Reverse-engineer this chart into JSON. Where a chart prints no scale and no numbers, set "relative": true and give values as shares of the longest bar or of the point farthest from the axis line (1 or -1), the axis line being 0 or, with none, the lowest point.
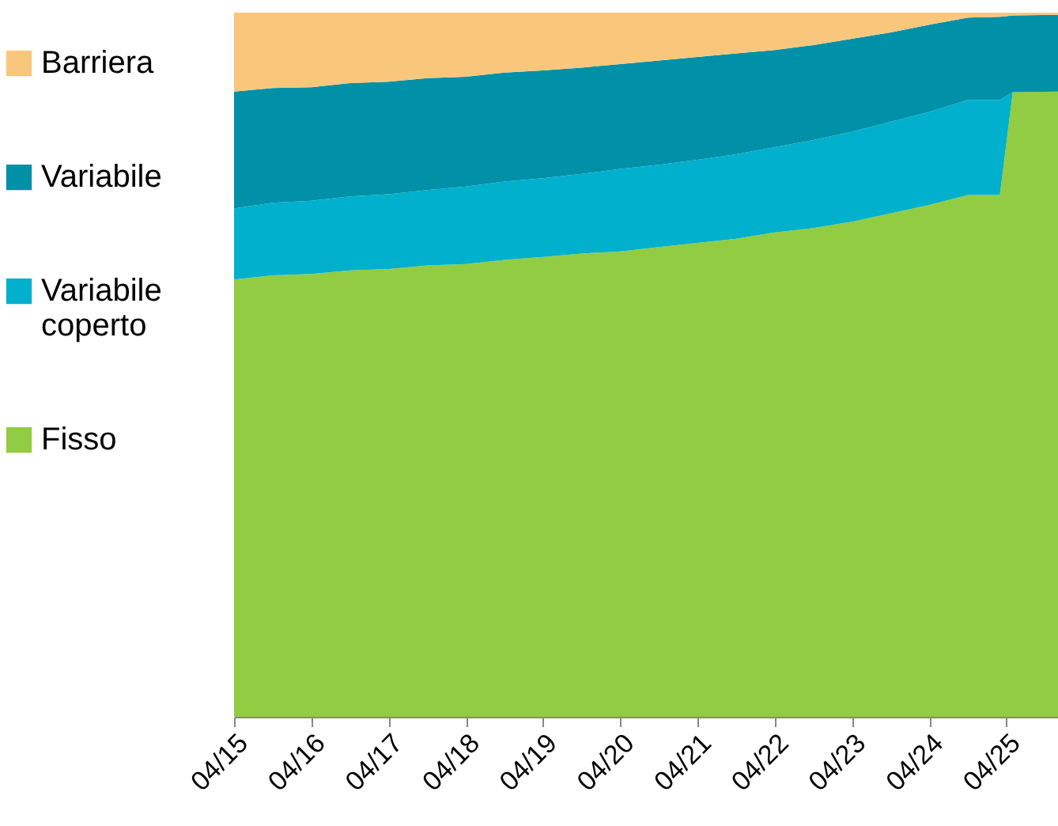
{
  "chart_data": {
    "type": "area",
    "stacked": true,
    "relative": true,
    "legend": "left",
    "grid": false,
    "x": [
      "2015-04",
      "2015-10",
      "2016-04",
      "2016-10",
      "2017-04",
      "2017-10",
      "2018-04",
      "2018-10",
      "2019-04",
      "2019-10",
      "2020-04",
      "2020-10",
      "2021-04",
      "2021-10",
      "2022-04",
      "2022-10",
      "2023-04",
      "2023-10",
      "2024-04",
      "2024-10",
      "2025-03",
      "2025-05",
      "2025-12"
    ],
    "xlim": [
      "2015-04",
      "2025-12"
    ],
    "xticks": [
      {
        "value": "2015-04",
        "label": "04/15"
      },
      {
        "value": "2016-04",
        "label": "04/16"
      },
      {
        "value": "2017-04",
        "label": "04/17"
      },
      {
        "value": "2018-04",
        "label": "04/18"
      },
      {
        "value": "2019-04",
        "label": "04/19"
      },
      {
        "value": "2020-04",
        "label": "04/20"
      },
      {
        "value": "2021-04",
        "label": "04/21"
      },
      {
        "value": "2022-04",
        "label": "04/22"
      },
      {
        "value": "2023-04",
        "label": "04/23"
      },
      {
        "value": "2024-04",
        "label": "04/24"
      },
      {
        "value": "2025-04",
        "label": "04/25"
      }
    ],
    "series": [
      {
        "name": "Fisso",
        "color": "#92cc42",
        "values": [
          0.621,
          0.627,
          0.629,
          0.634,
          0.636,
          0.641,
          0.643,
          0.649,
          0.653,
          0.658,
          0.661,
          0.667,
          0.673,
          0.679,
          0.688,
          0.694,
          0.703,
          0.715,
          0.727,
          0.741,
          0.741,
          0.887,
          0.888
        ]
      },
      {
        "name": "Variabile coperto",
        "color": "#00b0cc",
        "values": [
          0.101,
          0.103,
          0.104,
          0.105,
          0.106,
          0.107,
          0.11,
          0.111,
          0.112,
          0.113,
          0.117,
          0.117,
          0.118,
          0.12,
          0.121,
          0.125,
          0.128,
          0.13,
          0.132,
          0.135,
          0.135,
          0,
          0
        ]
      },
      {
        "name": "Variabile",
        "color": "#0090a8",
        "values": [
          0.166,
          0.163,
          0.161,
          0.161,
          0.16,
          0.159,
          0.156,
          0.155,
          0.153,
          0.151,
          0.149,
          0.148,
          0.146,
          0.143,
          0.138,
          0.135,
          0.132,
          0.127,
          0.124,
          0.117,
          0.118,
          0.109,
          0.109
        ]
      },
      {
        "name": "Barriera",
        "color": "#f9c77b",
        "values": [
          0.112,
          0.107,
          0.106,
          0.1,
          0.098,
          0.093,
          0.091,
          0.085,
          0.082,
          0.078,
          0.073,
          0.068,
          0.063,
          0.058,
          0.053,
          0.046,
          0.037,
          0.028,
          0.017,
          0.007,
          0.006,
          0.004,
          0.003
        ]
      }
    ]
  }
}
